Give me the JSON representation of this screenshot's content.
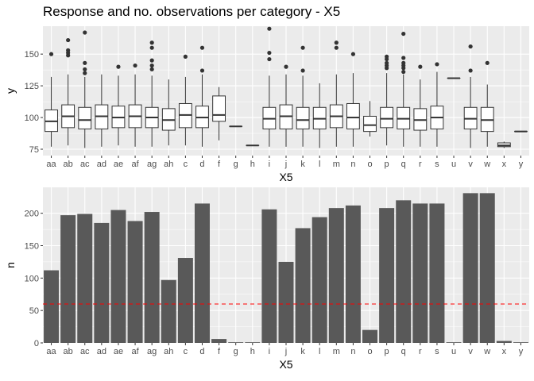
{
  "title": "Response and no. observations per category - X5",
  "colors": {
    "panel_bg": "#ebebeb",
    "grid_major": "#ffffff",
    "bar_fill": "#595959",
    "box_line": "#333333",
    "reference_line": "#ff0000",
    "tick_text": "#4d4d4d"
  },
  "chart_data": [
    {
      "type": "boxplot",
      "title": "Response and no. observations per category - X5",
      "xlabel": "X5",
      "ylabel": "y",
      "ylim": [
        70,
        172
      ],
      "yticks": [
        75,
        100,
        125,
        150
      ],
      "grid": true,
      "categories": [
        "aa",
        "ab",
        "ac",
        "ad",
        "ae",
        "af",
        "ag",
        "ah",
        "c",
        "d",
        "f",
        "g",
        "h",
        "i",
        "j",
        "k",
        "l",
        "m",
        "n",
        "o",
        "p",
        "q",
        "r",
        "s",
        "u",
        "v",
        "w",
        "x",
        "y"
      ],
      "boxes": [
        {
          "category": "aa",
          "min": 77,
          "q1": 89,
          "median": 97,
          "q3": 106,
          "max": 132,
          "outliers": [
            150
          ]
        },
        {
          "category": "ab",
          "min": 78,
          "q1": 92,
          "median": 101,
          "q3": 110,
          "max": 134,
          "outliers": [
            149,
            151,
            153,
            161
          ]
        },
        {
          "category": "ac",
          "min": 76,
          "q1": 91,
          "median": 98,
          "q3": 108,
          "max": 132,
          "outliers": [
            135,
            138,
            143,
            167
          ]
        },
        {
          "category": "ad",
          "min": 77,
          "q1": 91,
          "median": 101,
          "q3": 110,
          "max": 134,
          "outliers": []
        },
        {
          "category": "ae",
          "min": 78,
          "q1": 92,
          "median": 100,
          "q3": 109,
          "max": 133,
          "outliers": [
            140
          ]
        },
        {
          "category": "af",
          "min": 77,
          "q1": 92,
          "median": 101,
          "q3": 110,
          "max": 134,
          "outliers": [
            141
          ]
        },
        {
          "category": "ag",
          "min": 77,
          "q1": 92,
          "median": 100,
          "q3": 108,
          "max": 133,
          "outliers": [
            138,
            141,
            145,
            155,
            159
          ]
        },
        {
          "category": "ah",
          "min": 78,
          "q1": 90,
          "median": 98,
          "q3": 107,
          "max": 130,
          "outliers": []
        },
        {
          "category": "c",
          "min": 78,
          "q1": 92,
          "median": 102,
          "q3": 111,
          "max": 132,
          "outliers": [
            148
          ]
        },
        {
          "category": "d",
          "min": 77,
          "q1": 92,
          "median": 100,
          "q3": 109,
          "max": 134,
          "outliers": [
            137,
            155
          ]
        },
        {
          "category": "f",
          "min": 82,
          "q1": 97,
          "median": 102,
          "q3": 117,
          "max": 124,
          "outliers": []
        },
        {
          "category": "g",
          "min": 93,
          "q1": 93,
          "median": 93,
          "q3": 93,
          "max": 93,
          "outliers": []
        },
        {
          "category": "h",
          "min": 78,
          "q1": 78,
          "median": 78,
          "q3": 78,
          "max": 78,
          "outliers": []
        },
        {
          "category": "i",
          "min": 77,
          "q1": 91,
          "median": 99,
          "q3": 108,
          "max": 133,
          "outliers": [
            146,
            151,
            170
          ]
        },
        {
          "category": "j",
          "min": 77,
          "q1": 91,
          "median": 101,
          "q3": 110,
          "max": 134,
          "outliers": [
            140
          ]
        },
        {
          "category": "k",
          "min": 77,
          "q1": 91,
          "median": 98,
          "q3": 108,
          "max": 133,
          "outliers": [
            137,
            155
          ]
        },
        {
          "category": "l",
          "min": 76,
          "q1": 91,
          "median": 99,
          "q3": 108,
          "max": 127,
          "outliers": []
        },
        {
          "category": "m",
          "min": 77,
          "q1": 92,
          "median": 101,
          "q3": 110,
          "max": 134,
          "outliers": [
            155,
            159
          ]
        },
        {
          "category": "n",
          "min": 77,
          "q1": 91,
          "median": 100,
          "q3": 111,
          "max": 135,
          "outliers": [
            150
          ]
        },
        {
          "category": "o",
          "min": 85,
          "q1": 89,
          "median": 94,
          "q3": 101,
          "max": 113,
          "outliers": []
        },
        {
          "category": "p",
          "min": 78,
          "q1": 92,
          "median": 99,
          "q3": 108,
          "max": 135,
          "outliers": [
            139,
            141,
            143,
            146,
            148
          ]
        },
        {
          "category": "q",
          "min": 77,
          "q1": 91,
          "median": 99,
          "q3": 108,
          "max": 134,
          "outliers": [
            136,
            139,
            141,
            143,
            147,
            166
          ]
        },
        {
          "category": "r",
          "min": 77,
          "q1": 90,
          "median": 98,
          "q3": 107,
          "max": 130,
          "outliers": [
            140
          ]
        },
        {
          "category": "s",
          "min": 77,
          "q1": 91,
          "median": 100,
          "q3": 109,
          "max": 136,
          "outliers": [
            142
          ]
        },
        {
          "category": "u",
          "min": 131,
          "q1": 131,
          "median": 131,
          "q3": 131,
          "max": 131,
          "outliers": []
        },
        {
          "category": "v",
          "min": 76,
          "q1": 91,
          "median": 99,
          "q3": 108,
          "max": 132,
          "outliers": [
            137,
            156
          ]
        },
        {
          "category": "w",
          "min": 77,
          "q1": 89,
          "median": 98,
          "q3": 108,
          "max": 126,
          "outliers": [
            143
          ]
        },
        {
          "category": "x",
          "min": 76,
          "q1": 77,
          "median": 78,
          "q3": 80,
          "max": 81,
          "outliers": []
        },
        {
          "category": "y",
          "min": 89,
          "q1": 89,
          "median": 89,
          "q3": 89,
          "max": 89,
          "outliers": []
        }
      ]
    },
    {
      "type": "bar",
      "xlabel": "X5",
      "ylabel": "n",
      "ylim": [
        0,
        240
      ],
      "yticks": [
        0,
        50,
        100,
        150,
        200
      ],
      "grid": true,
      "reference_line": 60,
      "categories": [
        "aa",
        "ab",
        "ac",
        "ad",
        "ae",
        "af",
        "ag",
        "ah",
        "c",
        "d",
        "f",
        "g",
        "h",
        "i",
        "j",
        "k",
        "l",
        "m",
        "n",
        "o",
        "p",
        "q",
        "r",
        "s",
        "u",
        "v",
        "w",
        "x",
        "y"
      ],
      "values": [
        112,
        197,
        199,
        185,
        205,
        188,
        202,
        97,
        131,
        215,
        6,
        1,
        1,
        206,
        125,
        177,
        194,
        208,
        212,
        20,
        208,
        220,
        215,
        215,
        1,
        231,
        231,
        3,
        1
      ]
    }
  ]
}
